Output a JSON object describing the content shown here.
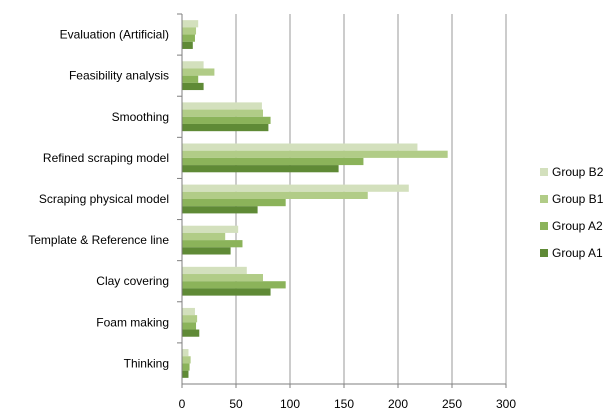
{
  "chart_data": {
    "type": "bar",
    "orientation": "horizontal",
    "categories": [
      "Evaluation (Artificial)",
      "Feasibility analysis",
      "Smoothing",
      "Refined scraping model",
      "Scraping physical model",
      "Template & Reference line",
      "Clay covering",
      "Foam making",
      "Thinking"
    ],
    "series": [
      {
        "name": "Group B2",
        "color": "#d3e0bd",
        "values": [
          15,
          20,
          74,
          218,
          210,
          52,
          60,
          12,
          6
        ]
      },
      {
        "name": "Group B1",
        "color": "#b1cc87",
        "values": [
          13,
          30,
          75,
          246,
          172,
          40,
          75,
          14,
          8
        ]
      },
      {
        "name": "Group A2",
        "color": "#8bb35a",
        "values": [
          12,
          15,
          82,
          168,
          96,
          56,
          96,
          13,
          7
        ]
      },
      {
        "name": "Group A1",
        "color": "#5f8a36",
        "values": [
          10,
          20,
          80,
          145,
          70,
          45,
          82,
          16,
          6
        ]
      }
    ],
    "legend_order": [
      "Group B2",
      "Group B1",
      "Group A2",
      "Group A1"
    ],
    "x_ticks": [
      "0",
      "50",
      "100",
      "150",
      "200",
      "250",
      "300"
    ],
    "xlim": [
      0,
      300
    ],
    "grid": "vertical",
    "legend": "right",
    "title": "",
    "xlabel": "",
    "ylabel": ""
  }
}
